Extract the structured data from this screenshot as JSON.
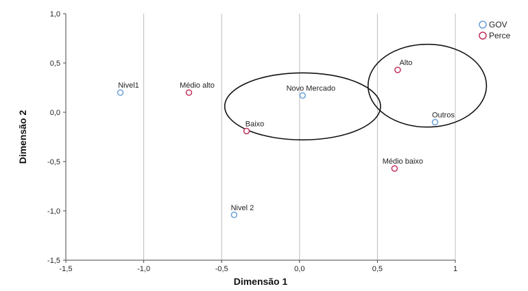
{
  "chart_data": {
    "type": "scatter",
    "xlabel": "Dimensão 1",
    "ylabel": "Dimensão 2",
    "xlim": [
      -1.5,
      1.0
    ],
    "ylim": [
      -1.5,
      1.0
    ],
    "x_ticks": [
      -1.5,
      -1.0,
      -0.5,
      0.0,
      0.5,
      1.0
    ],
    "x_tick_labels": [
      "-1,5",
      "-1,0",
      "-0,5",
      "0,0",
      "0,5",
      "1"
    ],
    "y_ticks": [
      -1.5,
      -1.0,
      -0.5,
      0.0,
      0.5,
      1.0
    ],
    "y_tick_labels": [
      "-1,5",
      "-1,0",
      "-0,5",
      "0,0",
      "0,5",
      "1,0"
    ],
    "grid": "vertical major gridlines",
    "legend_position": "top-right",
    "series": [
      {
        "name": "GOV",
        "color": "#6a9fd8",
        "points": [
          {
            "label": "Nivel1",
            "x": -1.15,
            "y": 0.2
          },
          {
            "label": "Novo Mercado",
            "x": 0.02,
            "y": 0.17
          },
          {
            "label": "Outros",
            "x": 0.87,
            "y": -0.1
          },
          {
            "label": "Nivel 2",
            "x": -0.42,
            "y": -1.04
          }
        ]
      },
      {
        "name": "Perce",
        "color": "#c0305a",
        "points": [
          {
            "label": "Médio alto",
            "x": -0.71,
            "y": 0.2
          },
          {
            "label": "Alto",
            "x": 0.63,
            "y": 0.43
          },
          {
            "label": "Baixo",
            "x": -0.34,
            "y": -0.19
          },
          {
            "label": "Médio baixo",
            "x": 0.61,
            "y": -0.57
          }
        ]
      }
    ],
    "ellipses": [
      {
        "cx": 0.02,
        "cy": 0.06,
        "rx": 0.5,
        "ry": 0.34
      },
      {
        "cx": 0.82,
        "cy": 0.27,
        "rx": 0.38,
        "ry": 0.42
      }
    ]
  }
}
